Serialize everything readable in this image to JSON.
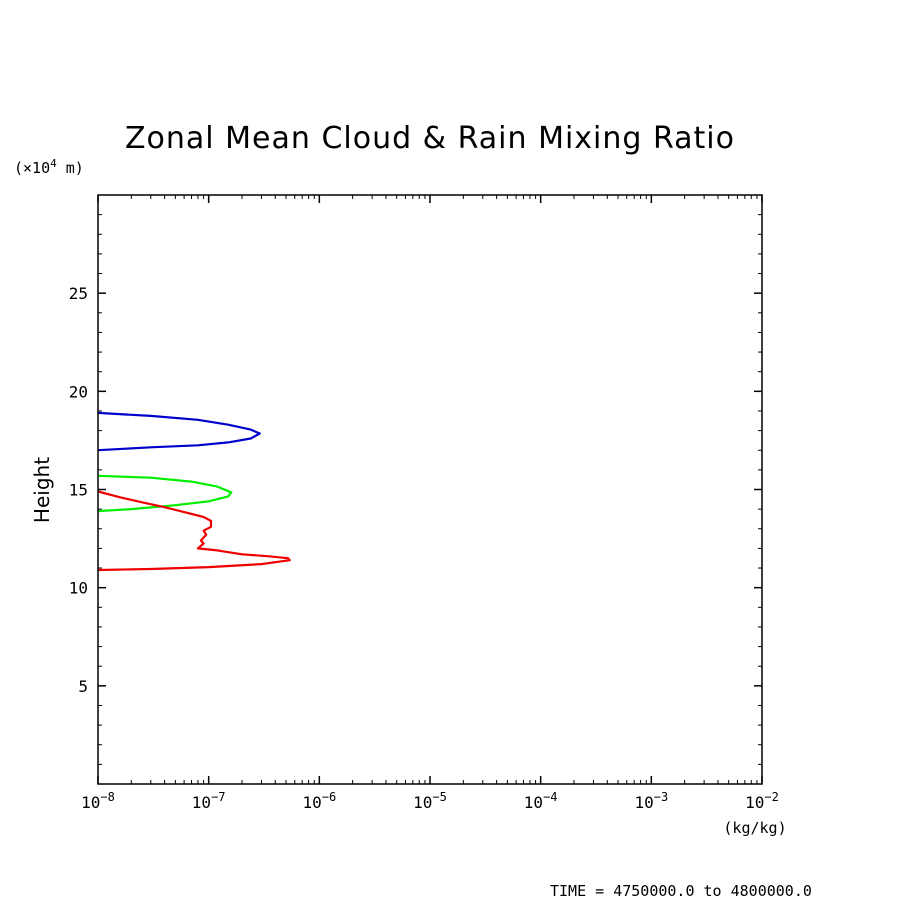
{
  "chart_data": {
    "type": "line",
    "title": "Zonal Mean Cloud & Rain Mixing Ratio",
    "ylabel": "Height",
    "y_unit": "(×10",
    "y_unit_exp": "4",
    "y_unit_tail": " m)",
    "xlabel": "(kg/kg)",
    "x_scale": "log",
    "xlim": [
      1e-08,
      0.01
    ],
    "ylim": [
      0,
      30
    ],
    "x_ticks": [
      {
        "base": "10",
        "exp": "−8",
        "value": 1e-08
      },
      {
        "base": "10",
        "exp": "−7",
        "value": 1e-07
      },
      {
        "base": "10",
        "exp": "−6",
        "value": 1e-06
      },
      {
        "base": "10",
        "exp": "−5",
        "value": 1e-05
      },
      {
        "base": "10",
        "exp": "−4",
        "value": 0.0001
      },
      {
        "base": "10",
        "exp": "−3",
        "value": 0.001
      },
      {
        "base": "10",
        "exp": "−2",
        "value": 0.01
      }
    ],
    "y_ticks": [
      5,
      10,
      15,
      20,
      25
    ],
    "grid": false,
    "series": [
      {
        "color": "#0000cc",
        "points": [
          [
            1e-08,
            18.9
          ],
          [
            3e-08,
            18.75
          ],
          [
            8e-08,
            18.55
          ],
          [
            1.5e-07,
            18.3
          ],
          [
            2.4e-07,
            18.05
          ],
          [
            2.9e-07,
            17.85
          ],
          [
            2.4e-07,
            17.6
          ],
          [
            1.5e-07,
            17.4
          ],
          [
            8e-08,
            17.25
          ],
          [
            3e-08,
            17.15
          ],
          [
            1e-08,
            17.0
          ]
        ]
      },
      {
        "color": "#00ee00",
        "points": [
          [
            1e-08,
            15.7
          ],
          [
            3e-08,
            15.6
          ],
          [
            7e-08,
            15.4
          ],
          [
            1.2e-07,
            15.15
          ],
          [
            1.6e-07,
            14.85
          ],
          [
            1.5e-07,
            14.65
          ],
          [
            1e-07,
            14.4
          ],
          [
            5e-08,
            14.2
          ],
          [
            2e-08,
            14.0
          ],
          [
            1e-08,
            13.9
          ]
        ]
      },
      {
        "color": "#ee0000",
        "points": [
          [
            1e-08,
            14.9
          ],
          [
            1.6e-08,
            14.6
          ],
          [
            2.5e-08,
            14.35
          ],
          [
            4e-08,
            14.1
          ],
          [
            6e-08,
            13.85
          ],
          [
            9e-08,
            13.6
          ],
          [
            1.05e-07,
            13.4
          ],
          [
            1.05e-07,
            13.1
          ],
          [
            9e-08,
            12.9
          ],
          [
            9.5e-08,
            12.7
          ],
          [
            8.5e-08,
            12.4
          ],
          [
            9e-08,
            12.25
          ],
          [
            8e-08,
            12.0
          ],
          [
            1.2e-07,
            11.9
          ],
          [
            2e-07,
            11.7
          ],
          [
            3.5e-07,
            11.6
          ],
          [
            5.2e-07,
            11.5
          ],
          [
            5.4e-07,
            11.4
          ],
          [
            3e-07,
            11.2
          ],
          [
            1e-07,
            11.05
          ],
          [
            3e-08,
            10.95
          ],
          [
            1e-08,
            10.9
          ]
        ]
      }
    ]
  },
  "footer": {
    "time_label": "TIME = 4750000.0 to 4800000.0"
  }
}
